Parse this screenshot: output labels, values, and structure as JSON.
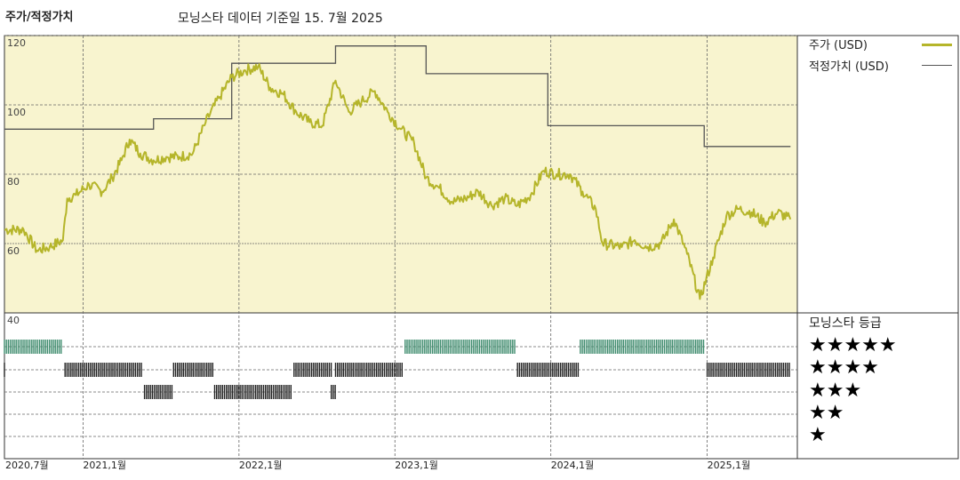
{
  "header": {
    "title": "주가/적정가치",
    "subtitle": "모닝스타 데이터 기준일 15. 7월 2025"
  },
  "legend": {
    "price_label": "주가 (USD)",
    "price_color": "#b5b52a",
    "fair_label": "적정가치 (USD)",
    "fair_color": "#555555"
  },
  "rating": {
    "heading": "모닝스타 등급",
    "rows": [
      "★★★★★",
      "★★★★",
      "★★★",
      "★★",
      "★"
    ],
    "colors": {
      "five_star": "#3f8c6e",
      "other": "#222222"
    }
  },
  "colors": {
    "plot_bg": "#f8f4cf",
    "grid": "#555555"
  },
  "chart_data": {
    "type": "line",
    "x_axis": {
      "ticks": [
        "2020,7월",
        "2021,1월",
        "2022,1월",
        "2023,1월",
        "2024,1월",
        "2025,1월"
      ],
      "tick_dates": [
        "2020-07",
        "2021-01",
        "2022-01",
        "2023-01",
        "2024-01",
        "2025-01"
      ],
      "range": [
        "2020-07",
        "2025-07"
      ]
    },
    "y_axis": {
      "ticks": [
        "120",
        "100",
        "80",
        "60",
        "40"
      ],
      "range": [
        40,
        120
      ],
      "grid": true
    },
    "series": [
      {
        "name": "주가 (USD)",
        "points": [
          [
            "2020-07-01",
            64
          ],
          [
            "2020-08-15",
            64
          ],
          [
            "2020-09-15",
            58
          ],
          [
            "2020-10-15",
            59
          ],
          [
            "2020-11-15",
            61
          ],
          [
            "2020-11-25",
            73
          ],
          [
            "2020-12-15",
            74
          ],
          [
            "2021-01-15",
            77
          ],
          [
            "2021-02-15",
            75
          ],
          [
            "2021-03-10",
            79
          ],
          [
            "2021-04-01",
            84
          ],
          [
            "2021-04-20",
            90
          ],
          [
            "2021-05-15",
            86
          ],
          [
            "2021-06-15",
            84
          ],
          [
            "2021-07-15",
            85
          ],
          [
            "2021-08-15",
            85
          ],
          [
            "2021-09-15",
            86
          ],
          [
            "2021-10-15",
            95
          ],
          [
            "2021-11-15",
            102
          ],
          [
            "2021-12-15",
            108
          ],
          [
            "2022-01-15",
            110
          ],
          [
            "2022-02-15",
            111
          ],
          [
            "2022-03-15",
            105
          ],
          [
            "2022-04-15",
            103
          ],
          [
            "2022-05-15",
            98
          ],
          [
            "2022-06-15",
            95
          ],
          [
            "2022-07-15",
            94
          ],
          [
            "2022-08-15",
            107
          ],
          [
            "2022-09-15",
            98
          ],
          [
            "2022-10-15",
            101
          ],
          [
            "2022-11-15",
            104
          ],
          [
            "2022-12-15",
            98
          ],
          [
            "2023-01-15",
            93
          ],
          [
            "2023-02-15",
            89
          ],
          [
            "2023-03-15",
            79
          ],
          [
            "2023-04-15",
            76
          ],
          [
            "2023-05-15",
            72
          ],
          [
            "2023-06-15",
            73
          ],
          [
            "2023-07-15",
            75
          ],
          [
            "2023-08-15",
            71
          ],
          [
            "2023-09-15",
            73
          ],
          [
            "2023-10-15",
            71
          ],
          [
            "2023-11-15",
            74
          ],
          [
            "2023-12-15",
            81
          ],
          [
            "2024-01-15",
            80
          ],
          [
            "2024-02-15",
            80
          ],
          [
            "2024-03-15",
            75
          ],
          [
            "2024-04-15",
            70
          ],
          [
            "2024-05-01",
            60
          ],
          [
            "2024-06-15",
            59
          ],
          [
            "2024-07-15",
            61
          ],
          [
            "2024-08-15",
            59
          ],
          [
            "2024-09-15",
            60
          ],
          [
            "2024-10-15",
            67
          ],
          [
            "2024-11-15",
            57
          ],
          [
            "2024-12-15",
            44
          ],
          [
            "2025-01-15",
            56
          ],
          [
            "2025-02-15",
            68
          ],
          [
            "2025-03-15",
            70
          ],
          [
            "2025-04-15",
            69
          ],
          [
            "2025-05-15",
            66
          ],
          [
            "2025-06-15",
            69
          ],
          [
            "2025-07-15",
            67
          ]
        ]
      },
      {
        "name": "적정가치 (USD)",
        "steps": [
          [
            "2020-07-01",
            93
          ],
          [
            "2021-06-15",
            96
          ],
          [
            "2021-12-15",
            112
          ],
          [
            "2022-08-15",
            117
          ],
          [
            "2023-03-15",
            109
          ],
          [
            "2023-12-25",
            94
          ],
          [
            "2024-12-25",
            88
          ],
          [
            "2025-07-15",
            88
          ]
        ]
      }
    ],
    "rating_history": [
      {
        "stars": 5,
        "ranges": [
          [
            "2020-07-01",
            "2020-11-15"
          ],
          [
            "2023-01-25",
            "2023-10-10"
          ],
          [
            "2024-03-10",
            "2024-12-25"
          ]
        ]
      },
      {
        "stars": 4,
        "ranges": [
          [
            "2020-07-01",
            "2020-07-05"
          ],
          [
            "2020-11-20",
            "2021-05-20"
          ],
          [
            "2021-08-01",
            "2021-11-01"
          ],
          [
            "2022-05-10",
            "2022-08-05"
          ],
          [
            "2022-08-15",
            "2023-01-20"
          ],
          [
            "2023-10-15",
            "2024-03-05"
          ],
          [
            "2025-01-01",
            "2025-07-15"
          ]
        ]
      },
      {
        "stars": 3,
        "ranges": [
          [
            "2021-05-25",
            "2021-08-01"
          ],
          [
            "2021-11-05",
            "2022-05-05"
          ],
          [
            "2022-08-05",
            "2022-08-15"
          ]
        ]
      }
    ]
  }
}
